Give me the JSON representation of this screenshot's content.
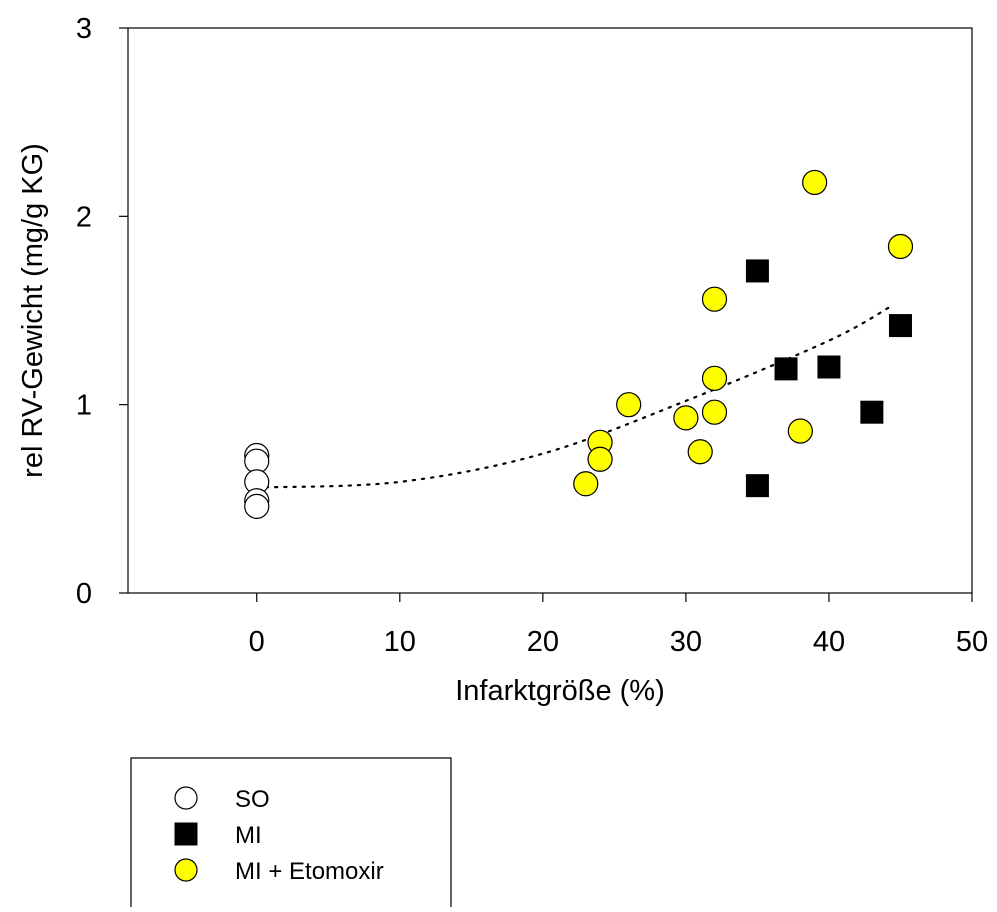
{
  "chart_data": {
    "type": "scatter",
    "xlabel": "Infarktgröße (%)",
    "ylabel": "rel RV-Gewicht (mg/g KG)",
    "xlim": [
      -9,
      50
    ],
    "ylim": [
      0,
      3
    ],
    "x_ticks": [
      0,
      10,
      20,
      30,
      40,
      50
    ],
    "y_ticks": [
      0,
      1,
      2,
      3
    ],
    "grid": false,
    "legend_position": "bottom-left",
    "series": [
      {
        "name": "SO",
        "marker": "circle-open",
        "color": "#ffffff",
        "points": [
          [
            0,
            0.73
          ],
          [
            0,
            0.7
          ],
          [
            0,
            0.59
          ],
          [
            0,
            0.49
          ],
          [
            0,
            0.46
          ]
        ]
      },
      {
        "name": "MI",
        "marker": "square",
        "color": "#000000",
        "points": [
          [
            35,
            1.71
          ],
          [
            37,
            1.19
          ],
          [
            40,
            1.2
          ],
          [
            45,
            1.42
          ],
          [
            43,
            0.96
          ],
          [
            35,
            0.57
          ]
        ]
      },
      {
        "name": "MI + Etomoxir",
        "marker": "circle-filled",
        "color": "#ffff00",
        "points": [
          [
            39,
            2.18
          ],
          [
            45,
            1.84
          ],
          [
            32,
            1.56
          ],
          [
            32,
            1.14
          ],
          [
            26,
            1.0
          ],
          [
            30,
            0.93
          ],
          [
            32,
            0.96
          ],
          [
            24,
            0.8
          ],
          [
            24,
            0.71
          ],
          [
            31,
            0.75
          ],
          [
            38,
            0.86
          ],
          [
            23,
            0.58
          ]
        ]
      }
    ],
    "trendline": {
      "style": "dotted",
      "x_range": [
        0,
        44.5
      ],
      "points": [
        [
          0,
          0.56
        ],
        [
          10,
          0.59
        ],
        [
          20,
          0.74
        ],
        [
          30,
          1.02
        ],
        [
          40,
          1.34
        ],
        [
          44.5,
          1.53
        ]
      ]
    }
  }
}
